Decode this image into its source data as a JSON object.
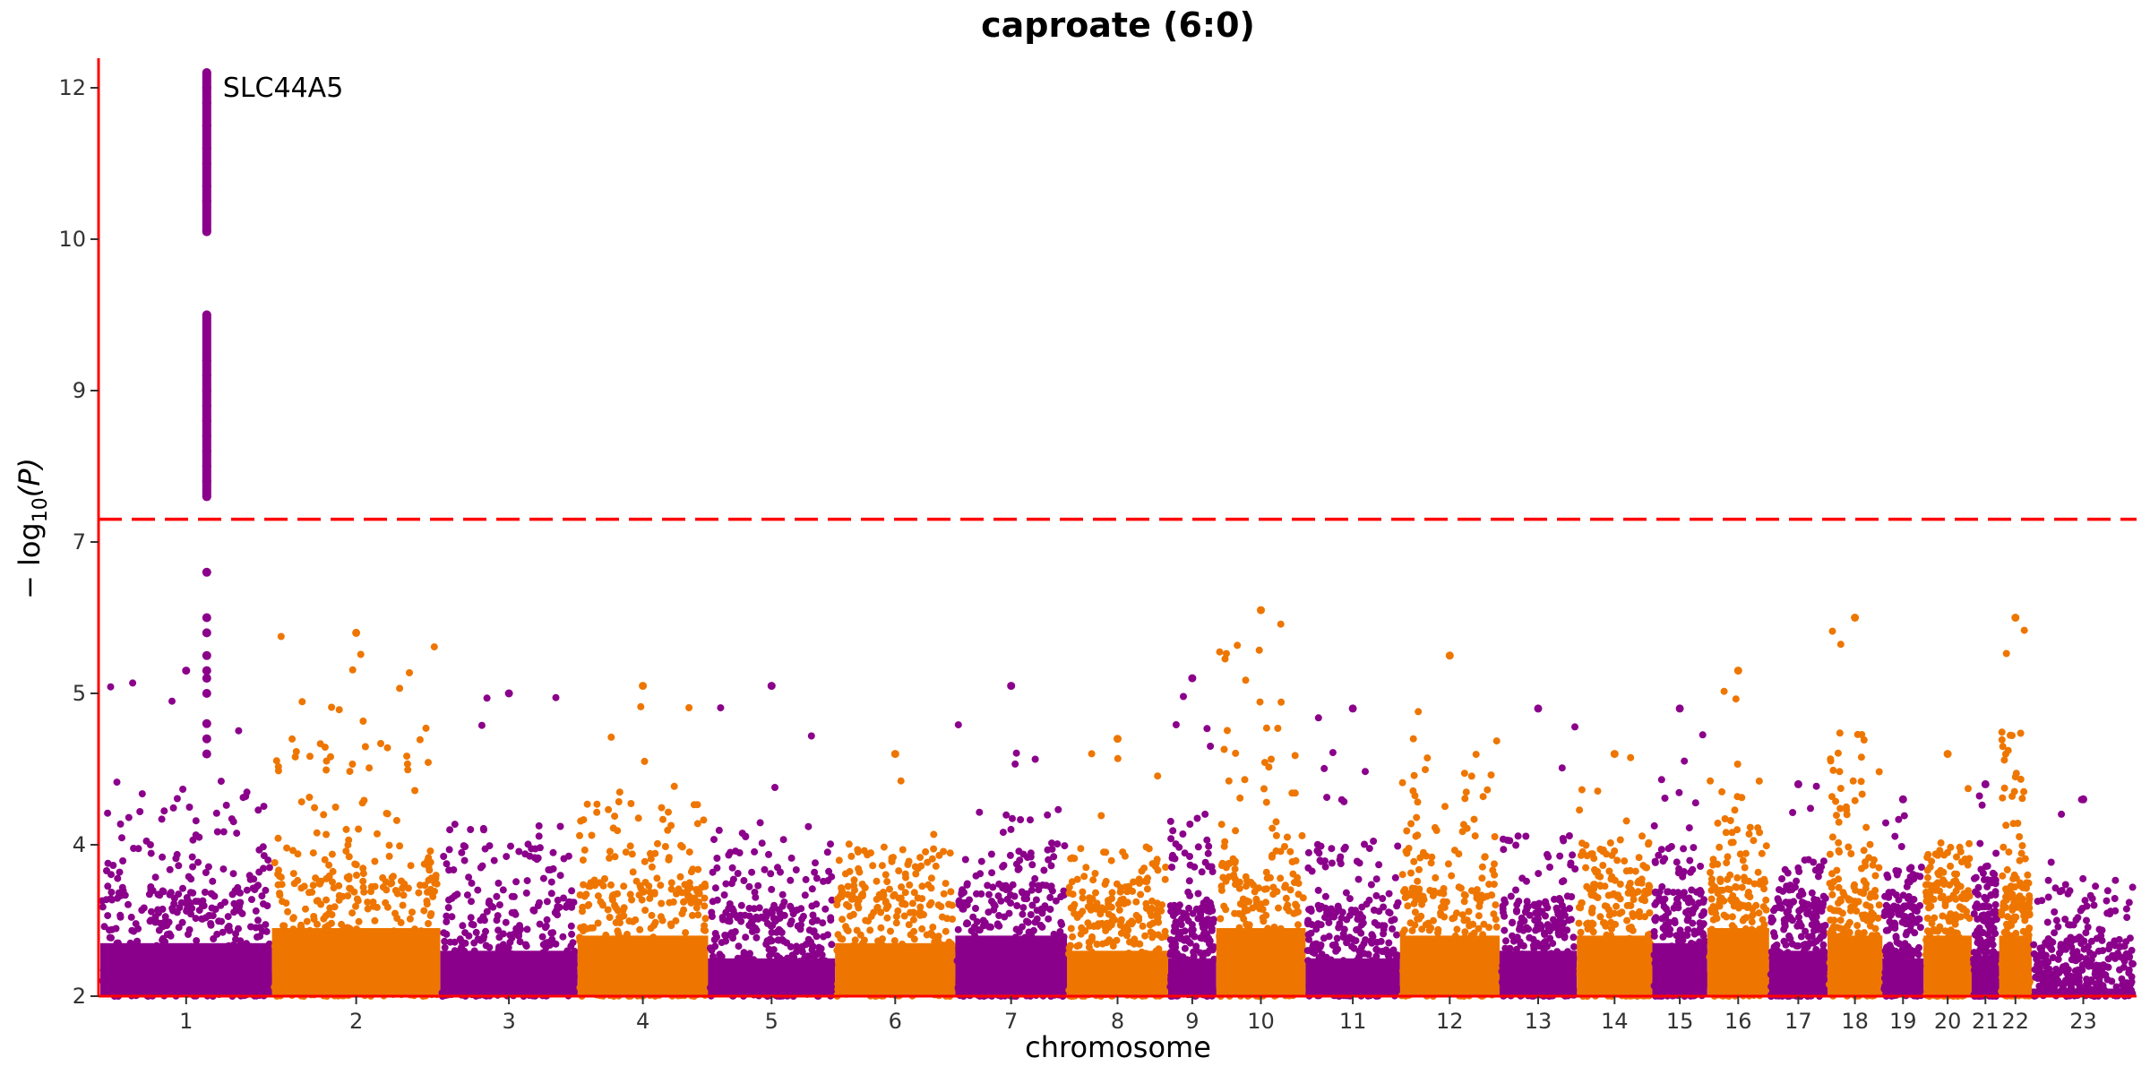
{
  "chart_data": {
    "type": "scatter",
    "subtype": "manhattan",
    "title": "caproate (6:0)",
    "xlabel": "chromosome",
    "ylabel_parts": {
      "prefix": "− log",
      "subscript": "10",
      "suffix": "(P)"
    },
    "ylim": [
      2,
      12.2
    ],
    "y_scale": "-log10(P), compressed above threshold",
    "y_ticks": [
      {
        "label": "2",
        "value": 2
      },
      {
        "label": "4",
        "value": 4
      },
      {
        "label": "5",
        "value": 5
      },
      {
        "label": "7",
        "value": 7
      },
      {
        "label": "9",
        "value": 9
      },
      {
        "label": "10",
        "value": 10
      },
      {
        "label": "12",
        "value": 12
      }
    ],
    "threshold": 7.3,
    "threshold_color": "#ff0000",
    "colors": {
      "odd": "#8b008b",
      "even": "#ee7600"
    },
    "chromosomes": [
      {
        "label": "1",
        "rel": 1.0,
        "max": 5.3,
        "band": 3.2
      },
      {
        "label": "2",
        "rel": 0.98,
        "max": 5.8,
        "band": 3.4
      },
      {
        "label": "3",
        "rel": 0.8,
        "max": 5.0,
        "band": 3.1
      },
      {
        "label": "4",
        "rel": 0.76,
        "max": 5.1,
        "band": 3.3
      },
      {
        "label": "5",
        "rel": 0.74,
        "max": 5.1,
        "band": 3.0
      },
      {
        "label": "6",
        "rel": 0.7,
        "max": 4.6,
        "band": 3.2
      },
      {
        "label": "7",
        "rel": 0.65,
        "max": 5.1,
        "band": 3.3
      },
      {
        "label": "8",
        "rel": 0.59,
        "max": 4.7,
        "band": 3.1
      },
      {
        "label": "9",
        "rel": 0.28,
        "max": 5.2,
        "band": 3.0
      },
      {
        "label": "10",
        "rel": 0.52,
        "max": 6.1,
        "band": 3.4
      },
      {
        "label": "11",
        "rel": 0.55,
        "max": 4.9,
        "band": 3.0
      },
      {
        "label": "12",
        "rel": 0.58,
        "max": 5.5,
        "band": 3.3
      },
      {
        "label": "13",
        "rel": 0.45,
        "max": 4.9,
        "band": 3.1
      },
      {
        "label": "14",
        "rel": 0.44,
        "max": 4.6,
        "band": 3.3
      },
      {
        "label": "15",
        "rel": 0.32,
        "max": 4.9,
        "band": 3.2
      },
      {
        "label": "16",
        "rel": 0.36,
        "max": 5.3,
        "band": 3.4
      },
      {
        "label": "17",
        "rel": 0.34,
        "max": 4.4,
        "band": 3.1
      },
      {
        "label": "18",
        "rel": 0.32,
        "max": 6.0,
        "band": 3.3
      },
      {
        "label": "19",
        "rel": 0.24,
        "max": 4.3,
        "band": 3.0
      },
      {
        "label": "20",
        "rel": 0.28,
        "max": 4.6,
        "band": 3.3
      },
      {
        "label": "21",
        "rel": 0.16,
        "max": 4.4,
        "band": 3.0
      },
      {
        "label": "22",
        "rel": 0.19,
        "max": 6.0,
        "band": 3.3
      },
      {
        "label": "23",
        "rel": 0.6,
        "max": 4.3,
        "band": 2.6
      }
    ],
    "peaks": [
      {
        "chromosome": "1",
        "position": 0.62,
        "values": [
          7.6,
          7.8,
          8.0,
          8.2,
          8.4,
          8.6,
          8.8,
          9.0,
          9.1,
          9.2,
          9.5,
          10.1,
          10.5,
          10.7,
          11.0,
          11.2,
          11.5,
          11.8,
          12.0,
          12.2
        ]
      },
      {
        "chromosome": "1",
        "position": 0.62,
        "values": [
          6.6,
          6.0,
          5.8,
          5.5,
          5.3,
          5.2,
          5.0,
          4.8,
          4.7,
          4.6
        ]
      }
    ],
    "annotations": [
      {
        "text": "SLC44A5",
        "chromosome": "1",
        "value": 12.0
      }
    ]
  }
}
